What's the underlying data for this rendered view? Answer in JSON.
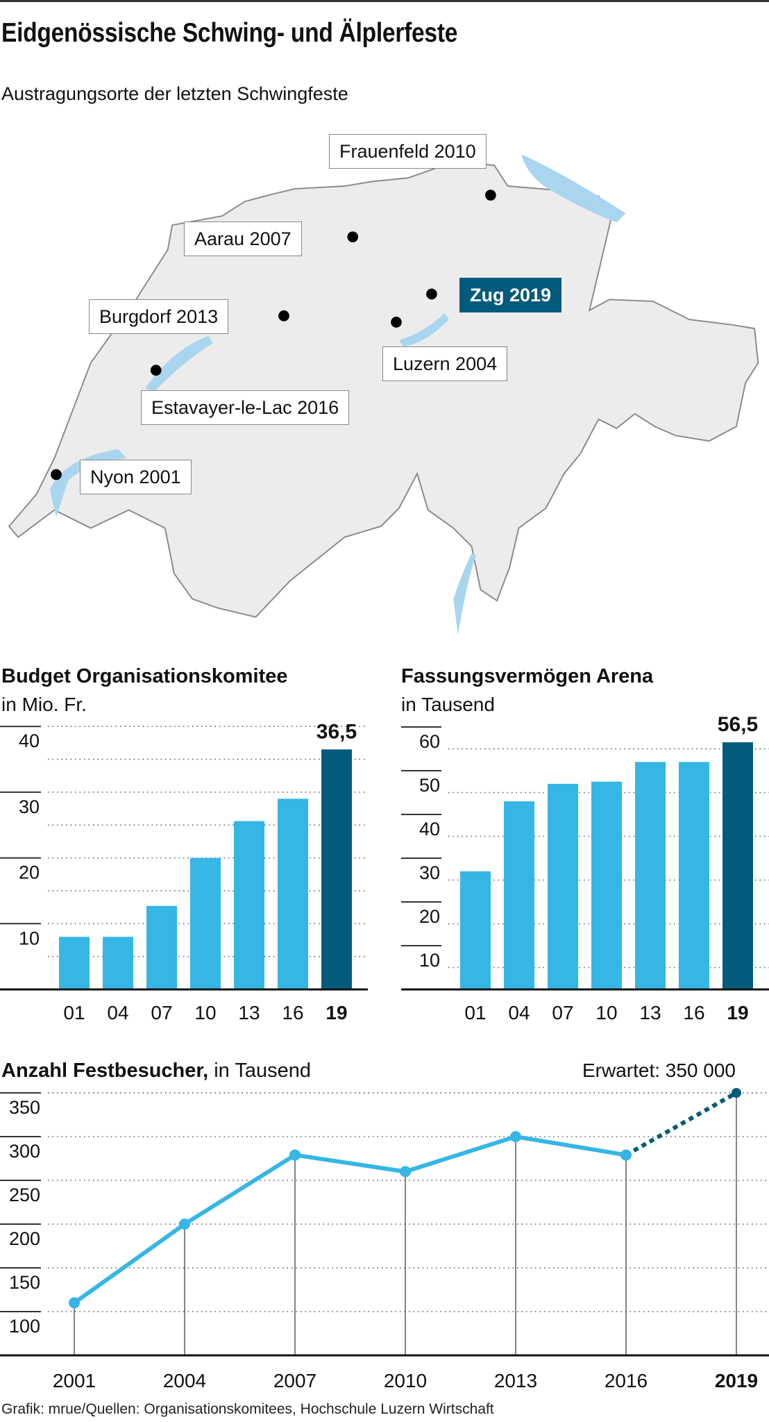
{
  "header": {
    "title": "Eidgenössische Schwing- und Älplerfeste",
    "subtitle": "Austragungsorte der letzten Schwingfeste"
  },
  "map": {
    "locations": [
      {
        "label": "Frauenfeld 2010",
        "highlight": false
      },
      {
        "label": "Aarau 2007",
        "highlight": false
      },
      {
        "label": "Zug 2019",
        "highlight": true
      },
      {
        "label": "Burgdorf 2013",
        "highlight": false
      },
      {
        "label": "Luzern 2004",
        "highlight": false
      },
      {
        "label": "Estavayer-le-Lac 2016",
        "highlight": false
      },
      {
        "label": "Nyon 2001",
        "highlight": false
      }
    ]
  },
  "colors": {
    "bar": "#35b6e5",
    "highlight": "#045a7a",
    "land": "#ececec",
    "lake": "#a9d6ee"
  },
  "chart_data": [
    {
      "type": "bar",
      "title": "Budget Organisationskomitee",
      "ylabel": "in Mio. Fr.",
      "categories": [
        "01",
        "04",
        "07",
        "10",
        "13",
        "16",
        "19"
      ],
      "values": [
        8,
        8,
        12.7,
        20,
        25.6,
        29,
        36.5
      ],
      "highlight_index": 6,
      "value_label": "36,5",
      "yticks": [
        "10",
        "20",
        "30",
        "40"
      ],
      "ylim": [
        0,
        40
      ]
    },
    {
      "type": "bar",
      "title": "Fassungsvermögen Arena",
      "ylabel": "in Tausend",
      "categories": [
        "01",
        "04",
        "07",
        "10",
        "13",
        "16",
        "19"
      ],
      "values": [
        27,
        43,
        47,
        47.5,
        52,
        52,
        56.5
      ],
      "highlight_index": 6,
      "value_label": "56,5",
      "yticks": [
        "10",
        "20",
        "30",
        "40",
        "50",
        "60"
      ],
      "ylim": [
        0,
        60
      ]
    },
    {
      "type": "line",
      "title": "Anzahl Festbesucher,",
      "title_suffix": "in Tausend",
      "annotation": "Erwartet: 350 000",
      "x": [
        "2001",
        "2004",
        "2007",
        "2010",
        "2013",
        "2016",
        "2019"
      ],
      "values": [
        110,
        200,
        279,
        260,
        300,
        279,
        350
      ],
      "projected_index": 6,
      "yticks": [
        "100",
        "150",
        "200",
        "250",
        "300",
        "350"
      ],
      "ylim": [
        50,
        350
      ]
    }
  ],
  "footer": {
    "source": "Grafik: mrue/Quellen: Organisationskomitees, Hochschule Luzern Wirtschaft"
  }
}
